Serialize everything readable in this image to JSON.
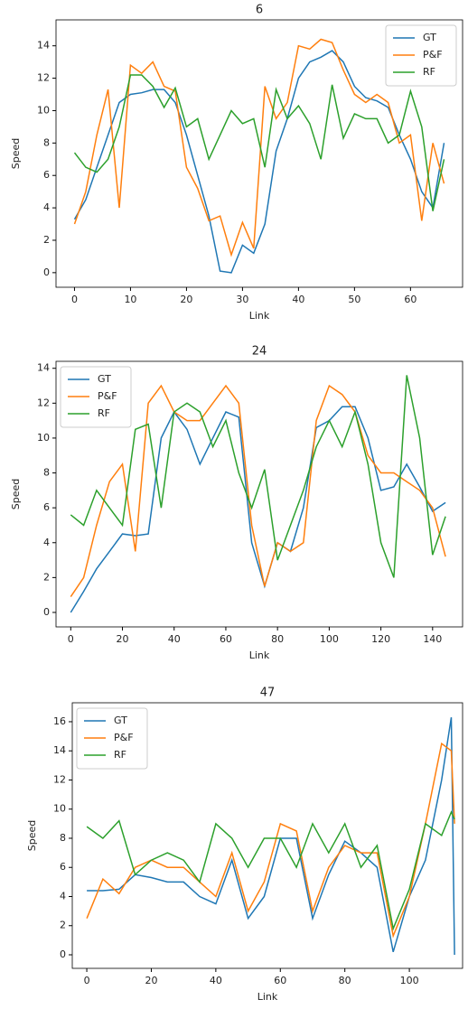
{
  "chart_data": [
    {
      "type": "line",
      "title": "6",
      "xlabel": "Link",
      "ylabel": "Speed",
      "legend": "upper right",
      "x": [
        0,
        2,
        4,
        6,
        8,
        10,
        12,
        14,
        16,
        18,
        20,
        22,
        24,
        26,
        28,
        30,
        32,
        34,
        36,
        38,
        40,
        42,
        44,
        46,
        48,
        50,
        52,
        54,
        56,
        58,
        60,
        62,
        64,
        66
      ],
      "xlim": [
        -3.3,
        69.3
      ],
      "xticks": [
        0,
        10,
        20,
        30,
        40,
        50,
        60
      ],
      "ylim": [
        -0.9,
        15.6
      ],
      "yticks": [
        0,
        2,
        4,
        6,
        8,
        10,
        12,
        14
      ],
      "series": [
        {
          "name": "GT",
          "color": "#1f77b4",
          "values": [
            3.3,
            4.5,
            6.5,
            8.5,
            10.5,
            11,
            11.1,
            11.3,
            11.3,
            10.5,
            8.5,
            6,
            3.5,
            0.1,
            0,
            1.7,
            1.2,
            3,
            7.5,
            9.5,
            12,
            13,
            13.3,
            13.7,
            13,
            11.5,
            10.8,
            10.6,
            10.2,
            8.5,
            7,
            5,
            4,
            8
          ]
        },
        {
          "name": "P&F",
          "color": "#ff7f0e",
          "values": [
            3,
            5,
            8.5,
            11.3,
            4,
            12.8,
            12.3,
            13,
            11.5,
            11.2,
            6.5,
            5.2,
            3.2,
            3.5,
            1.1,
            3.1,
            1.5,
            11.5,
            9.5,
            10.5,
            14,
            13.8,
            14.4,
            14.2,
            12.5,
            11,
            10.5,
            11,
            10.5,
            8,
            8.5,
            3.2,
            8,
            5.5
          ]
        },
        {
          "name": "RF",
          "color": "#2ca02c",
          "values": [
            7.4,
            6.5,
            6.2,
            7,
            9,
            12.2,
            12.2,
            11.5,
            10.2,
            11.4,
            9,
            9.5,
            7,
            8.5,
            10,
            9.2,
            9.5,
            6.5,
            11.3,
            9.5,
            10.3,
            9.2,
            7,
            11.6,
            8.3,
            9.8,
            9.5,
            9.5,
            8,
            8.5,
            11.2,
            9,
            3.8,
            7
          ]
        }
      ]
    },
    {
      "type": "line",
      "title": "24",
      "xlabel": "Link",
      "ylabel": "Speed",
      "legend": "upper left",
      "x": [
        0,
        5,
        10,
        15,
        20,
        25,
        30,
        35,
        40,
        45,
        50,
        55,
        60,
        65,
        70,
        75,
        80,
        85,
        90,
        95,
        100,
        105,
        110,
        115,
        120,
        125,
        130,
        135,
        140,
        145
      ],
      "xlim": [
        -5.7,
        151.6
      ],
      "xticks": [
        0,
        20,
        40,
        60,
        80,
        100,
        120,
        140
      ],
      "ylim": [
        -0.83,
        14.4
      ],
      "yticks": [
        0,
        2,
        4,
        6,
        8,
        10,
        12,
        14
      ],
      "series": [
        {
          "name": "GT",
          "color": "#1f77b4",
          "values": [
            0,
            1.2,
            2.5,
            3.5,
            4.5,
            4.4,
            4.5,
            10,
            11.5,
            10.5,
            8.5,
            10,
            11.5,
            11.2,
            4,
            1.5,
            4,
            3.5,
            6,
            10.6,
            11,
            11.8,
            11.8,
            10,
            7,
            7.2,
            8.5,
            7.2,
            5.8,
            6.3
          ]
        },
        {
          "name": "P&F",
          "color": "#ff7f0e",
          "values": [
            0.9,
            2,
            5,
            7.5,
            8.5,
            3.5,
            12,
            13,
            11.5,
            11,
            11,
            12,
            13,
            12,
            5,
            1.5,
            4,
            3.5,
            4,
            11,
            13,
            12.5,
            11.5,
            9,
            8,
            8,
            7.5,
            7,
            6,
            3.2
          ]
        },
        {
          "name": "RF",
          "color": "#2ca02c",
          "values": [
            5.6,
            5,
            7,
            6,
            5,
            10.5,
            10.8,
            6,
            11.5,
            12,
            11.5,
            9.5,
            11,
            8,
            6,
            8.2,
            3,
            5,
            7,
            9.5,
            11,
            9.5,
            11.5,
            8.5,
            4,
            2,
            13.6,
            10,
            3.3,
            5.5
          ]
        }
      ]
    },
    {
      "type": "line",
      "title": "47",
      "xlabel": "Link",
      "ylabel": "Speed",
      "legend": "upper left",
      "x": [
        0,
        5,
        10,
        15,
        20,
        25,
        30,
        35,
        40,
        45,
        50,
        55,
        60,
        65,
        70,
        75,
        80,
        85,
        90,
        95,
        100,
        105,
        110,
        113,
        114
      ],
      "xlim": [
        -4.5,
        116.5
      ],
      "xticks": [
        0,
        20,
        40,
        60,
        80,
        100
      ],
      "ylim": [
        -0.93,
        17.3
      ],
      "yticks": [
        0,
        2,
        4,
        6,
        8,
        10,
        12,
        14,
        16
      ],
      "series": [
        {
          "name": "GT",
          "color": "#1f77b4",
          "values": [
            4.4,
            4.4,
            4.5,
            5.5,
            5.3,
            5,
            5,
            4,
            3.5,
            6.5,
            2.5,
            4,
            8,
            8,
            2.5,
            5.5,
            7.8,
            7,
            6,
            0.2,
            4,
            6.5,
            12,
            16.3,
            0
          ]
        },
        {
          "name": "P&F",
          "color": "#ff7f0e",
          "values": [
            2.5,
            5.2,
            4.2,
            6,
            6.5,
            6,
            6,
            5,
            4,
            7,
            3,
            5,
            9,
            8.5,
            3,
            6,
            7.5,
            7,
            7,
            1.3,
            4,
            9,
            14.5,
            14,
            9
          ]
        },
        {
          "name": "RF",
          "color": "#2ca02c",
          "values": [
            8.8,
            8,
            9.2,
            5.5,
            6.5,
            7,
            6.5,
            5,
            9,
            8,
            6,
            8,
            8,
            6,
            9,
            7,
            9,
            6,
            7.5,
            1.8,
            4.5,
            9,
            8.2,
            9.8,
            9.3
          ]
        }
      ]
    }
  ]
}
